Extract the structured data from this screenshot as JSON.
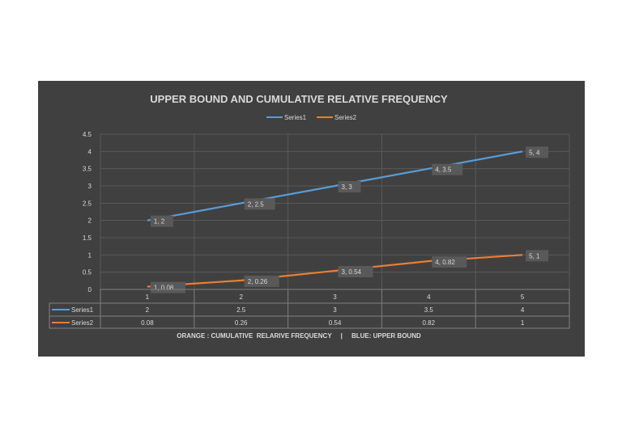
{
  "chart_data": {
    "type": "line",
    "title": "UPPER BOUND AND CUMULATIVE RELATIVE FREQUENCY",
    "categories": [
      "1",
      "2",
      "3",
      "4",
      "5"
    ],
    "series": [
      {
        "name": "Series1",
        "color": "#5b9bd5",
        "values": [
          2,
          2.5,
          3,
          3.5,
          4
        ],
        "table_values": [
          "2",
          "2.5",
          "3",
          "3.5",
          "4"
        ],
        "data_labels": [
          "1, 2",
          "2, 2.5",
          "3, 3",
          "4, 3.5",
          "5, 4"
        ]
      },
      {
        "name": "Series2",
        "color": "#ed7d31",
        "values": [
          0.08,
          0.26,
          0.54,
          0.82,
          1
        ],
        "table_values": [
          "0.08",
          "0.26",
          "0.54",
          "0.82",
          "1"
        ],
        "data_labels": [
          "1, 0.08",
          "2, 0.26",
          "3, 0.54",
          "4, 0.82",
          "5, 1"
        ]
      }
    ],
    "ylim": [
      0,
      4.5
    ],
    "yticks": [
      "0",
      "0.5",
      "1",
      "1.5",
      "2",
      "2.5",
      "3",
      "3.5",
      "4",
      "4.5"
    ],
    "grid": true,
    "legend": "top",
    "data_table": true,
    "footer": "ORANGE : CUMULATIVE  RELARIVE FREQUENCY     |     BLUE: UPPER BOUND"
  }
}
